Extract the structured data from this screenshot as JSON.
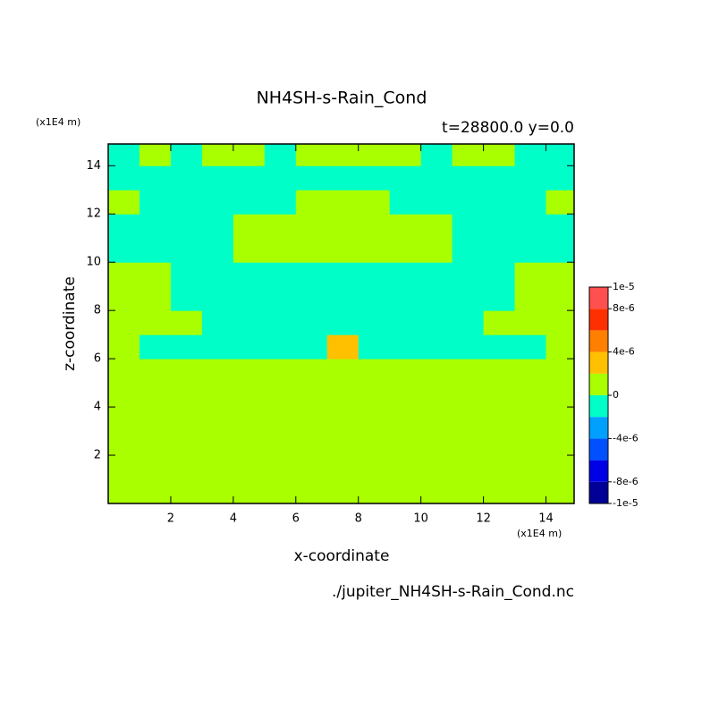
{
  "chart_data": {
    "type": "contour",
    "title": "NH4SH-s-Rain_Cond",
    "subtitle": "t=28800.0 y=0.0",
    "x_label": "x-coordinate",
    "y_label": "z-coordinate",
    "x_unit": "(x1E4 m)",
    "y_unit": "(x1E4 m)",
    "footer": "./jupiter_NH4SH-s-Rain_Cond.nc",
    "xlim": [
      0,
      14.9
    ],
    "ylim": [
      0,
      14.9
    ],
    "xticks": [
      2,
      4,
      6,
      8,
      10,
      12,
      14
    ],
    "yticks": [
      2,
      4,
      6,
      8,
      10,
      12,
      14
    ],
    "x": [
      0.5,
      1.5,
      2.5,
      3.5,
      4.5,
      5.5,
      6.5,
      7.5,
      8.5,
      9.5,
      10.5,
      11.5,
      12.5,
      13.5,
      14.5
    ],
    "z": [
      0.5,
      1.5,
      2.5,
      3.5,
      4.5,
      5.5,
      6.5,
      7.5,
      8.5,
      9.5,
      10.5,
      11.5,
      12.5,
      13.5,
      14.5
    ],
    "field": [
      [
        1e-06,
        1e-06,
        1e-06,
        1e-06,
        1e-06,
        1e-06,
        1e-06,
        1e-06,
        1e-06,
        1e-06,
        1e-06,
        1e-06,
        1e-06,
        1e-06,
        1e-06
      ],
      [
        1e-06,
        1e-06,
        1e-06,
        1e-06,
        1e-06,
        1e-06,
        1e-06,
        1e-06,
        1e-06,
        1e-06,
        1e-06,
        1e-06,
        1e-06,
        1e-06,
        1e-06
      ],
      [
        1e-06,
        1e-06,
        1e-06,
        1e-06,
        1e-06,
        1e-06,
        1e-06,
        1e-06,
        1e-06,
        1e-06,
        1e-06,
        1e-06,
        1e-06,
        1e-06,
        1e-06
      ],
      [
        1e-06,
        1e-06,
        1e-06,
        1e-06,
        1e-06,
        1e-06,
        1e-06,
        1e-06,
        1e-06,
        1e-06,
        1e-06,
        1e-06,
        1e-06,
        1e-06,
        1e-06
      ],
      [
        1e-06,
        1e-06,
        1e-06,
        1e-06,
        1e-06,
        1e-06,
        1e-06,
        1e-06,
        1e-06,
        1e-06,
        1e-06,
        1e-06,
        1e-06,
        1e-06,
        1e-06
      ],
      [
        1e-06,
        1e-06,
        1e-06,
        1e-06,
        1e-06,
        1e-06,
        1e-06,
        1e-06,
        1e-06,
        1e-06,
        1e-06,
        1e-06,
        1e-06,
        1e-06,
        1e-06
      ],
      [
        1e-06,
        -1e-06,
        -1e-06,
        -1e-06,
        -1e-06,
        -1e-06,
        -1e-06,
        3e-06,
        -1e-06,
        -1e-06,
        -1e-06,
        -1e-06,
        -1e-06,
        -1e-06,
        1e-06
      ],
      [
        1e-06,
        1e-06,
        1e-06,
        -1e-06,
        -1e-06,
        -1e-06,
        -1e-06,
        -1e-06,
        -1e-06,
        -1e-06,
        -1e-06,
        -1e-06,
        1e-06,
        1e-06,
        1e-06
      ],
      [
        1e-06,
        1e-06,
        -1e-06,
        -1e-06,
        -1e-06,
        -1e-06,
        -1e-06,
        -1e-06,
        -1e-06,
        -1e-06,
        -1e-06,
        -1e-06,
        -1e-06,
        1e-06,
        1e-06
      ],
      [
        1e-06,
        1e-06,
        -1e-06,
        -1e-06,
        -1e-06,
        -1e-06,
        -1e-06,
        -1e-06,
        -1e-06,
        -1e-06,
        -1e-06,
        -1e-06,
        -1e-06,
        1e-06,
        1e-06
      ],
      [
        -1e-06,
        -1e-06,
        -1e-06,
        -1e-06,
        1e-06,
        1e-06,
        1e-06,
        1e-06,
        1e-06,
        1e-06,
        1e-06,
        -1e-06,
        -1e-06,
        -1e-06,
        -1e-06
      ],
      [
        -1e-06,
        -1e-06,
        -1e-06,
        -1e-06,
        1e-06,
        1e-06,
        1e-06,
        1e-06,
        1e-06,
        1e-06,
        1e-06,
        -1e-06,
        -1e-06,
        -1e-06,
        -1e-06
      ],
      [
        1e-06,
        -1e-06,
        -1e-06,
        -1e-06,
        -1e-06,
        -1e-06,
        1e-06,
        1e-06,
        1e-06,
        -1e-06,
        -1e-06,
        -1e-06,
        -1e-06,
        -1e-06,
        1e-06
      ],
      [
        -1e-06,
        -1e-06,
        -1e-06,
        -1e-06,
        -1e-06,
        -1e-06,
        -1e-06,
        -1e-06,
        -1e-06,
        -1e-06,
        -1e-06,
        -1e-06,
        -1e-06,
        -1e-06,
        -1e-06
      ],
      [
        -1e-06,
        1e-06,
        -1e-06,
        1e-06,
        1e-06,
        -1e-06,
        1e-06,
        1e-06,
        1e-06,
        1e-06,
        -1e-06,
        1e-06,
        1e-06,
        -1e-06,
        -1e-06
      ]
    ],
    "levels": [
      -1e-05,
      -8e-06,
      -6e-06,
      -4e-06,
      -2e-06,
      0,
      2e-06,
      4e-06,
      6e-06,
      8e-06,
      1e-05
    ],
    "colors": [
      "#000096",
      "#0000e6",
      "#0050ff",
      "#00a0ff",
      "#00ffc8",
      "#a9ff00",
      "#ffc000",
      "#ff8000",
      "#ff3000",
      "#ff5050"
    ],
    "colorbar_ticks": [
      {
        "value": 1e-05,
        "label": "1e-5"
      },
      {
        "value": 8e-06,
        "label": "8e-6"
      },
      {
        "value": 4e-06,
        "label": "4e-6"
      },
      0,
      {
        "value": -4e-06,
        "label": "-4e-6"
      },
      {
        "value": -8e-06,
        "label": "-8e-6"
      },
      {
        "value": -1e-05,
        "label": "-1e-5"
      }
    ]
  }
}
